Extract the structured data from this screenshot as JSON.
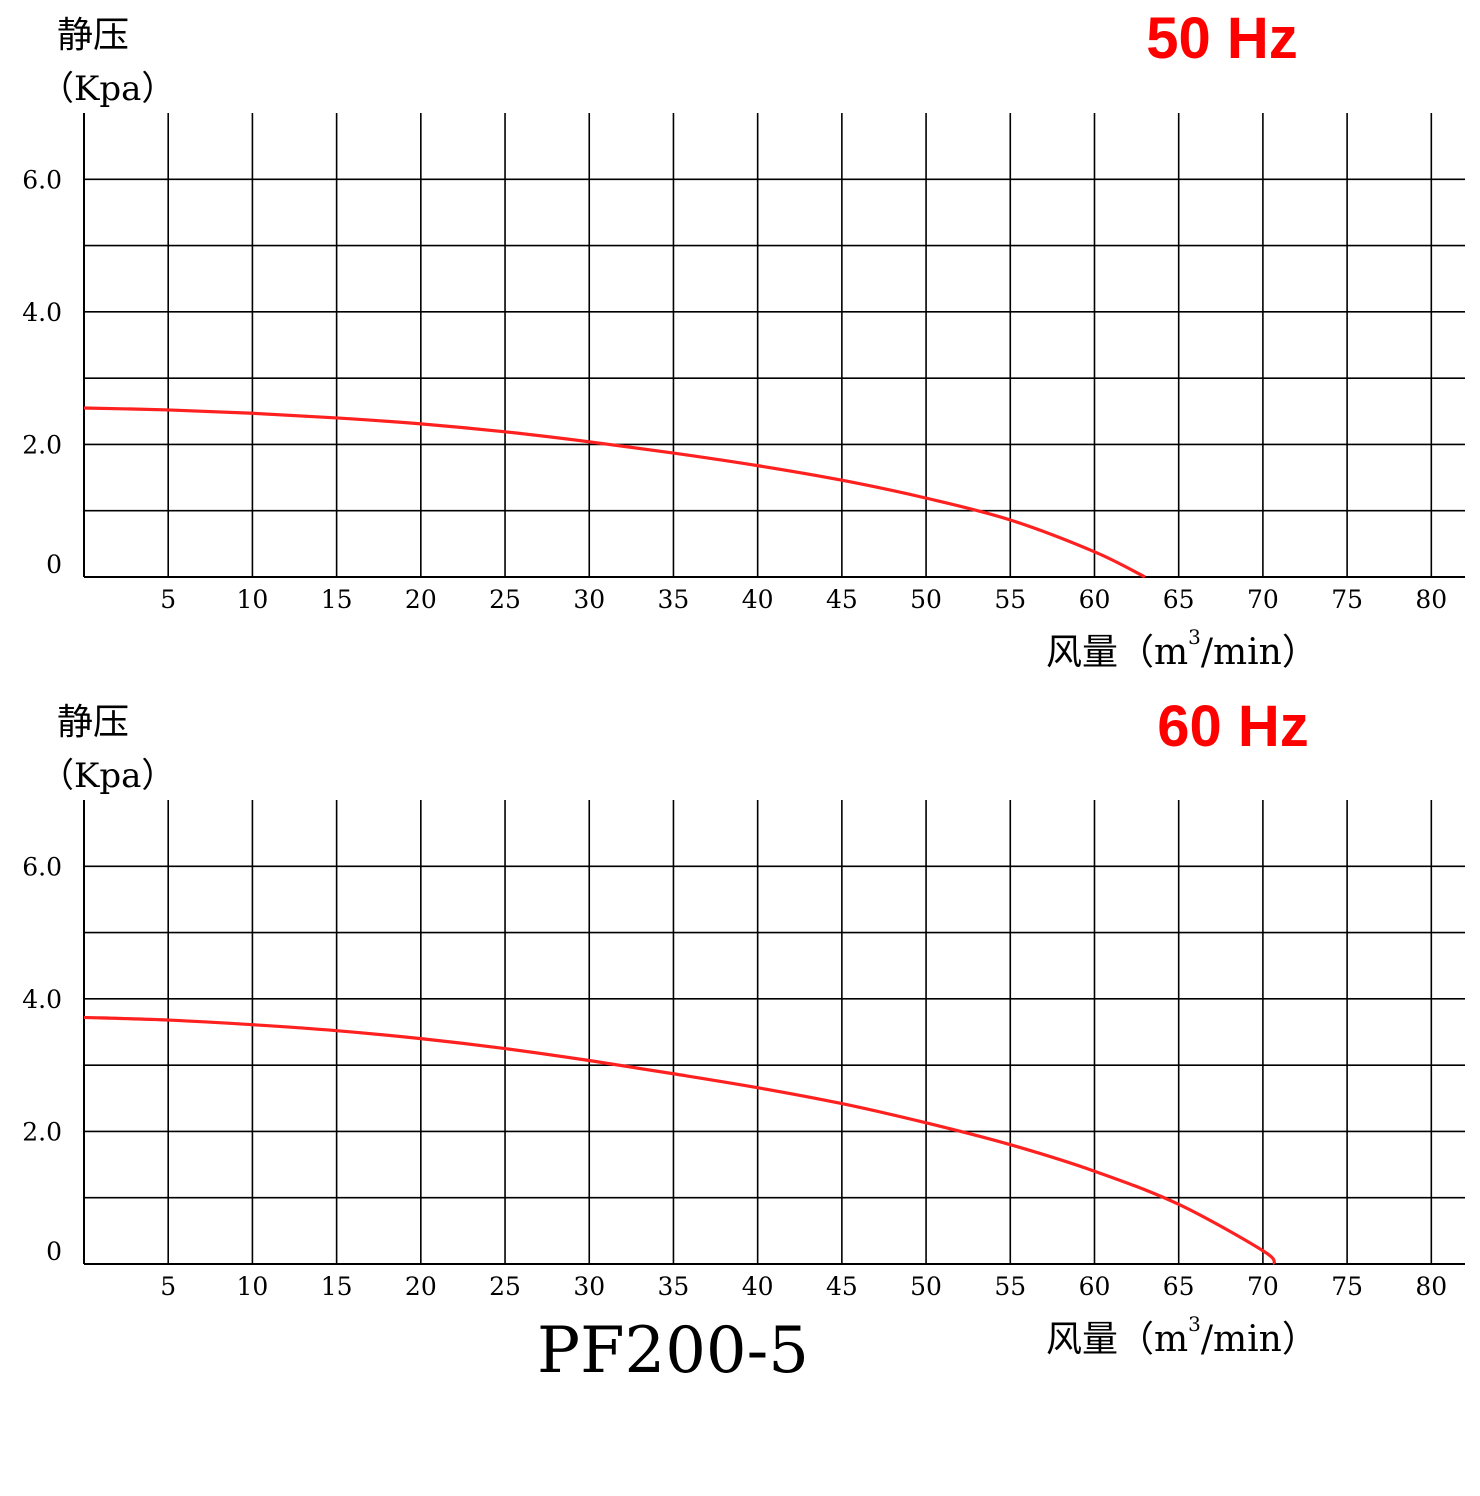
{
  "model": "PF200-5",
  "colors": {
    "curve": "#ff2020",
    "freq_label": "#ff0000",
    "grid": "#000000",
    "text": "#000000"
  },
  "chart_data": [
    {
      "type": "line",
      "title": "50 Hz",
      "ylabel": "静压",
      "yunit": "（Kpa）",
      "xlabel": "风量（m³/min）",
      "xlabel_parts": {
        "prefix": "风量（m",
        "sup": "3",
        "suffix": "/min）"
      },
      "xlim": [
        0,
        82
      ],
      "ylim": [
        0,
        7
      ],
      "x_ticks": [
        "5",
        "10",
        "15",
        "20",
        "25",
        "30",
        "35",
        "40",
        "45",
        "50",
        "55",
        "60",
        "65",
        "70",
        "75",
        "80"
      ],
      "y_ticks": [
        {
          "value": 0,
          "label": "0"
        },
        {
          "value": 2,
          "label": "2.0"
        },
        {
          "value": 4,
          "label": "4.0"
        },
        {
          "value": 6,
          "label": "6.0"
        }
      ],
      "grid": true,
      "series": [
        {
          "x": [
            0,
            5,
            10,
            15,
            20,
            25,
            30,
            35,
            40,
            45,
            50,
            55,
            60,
            63
          ],
          "y": [
            2.55,
            2.52,
            2.47,
            2.4,
            2.31,
            2.19,
            2.04,
            1.87,
            1.68,
            1.46,
            1.19,
            0.86,
            0.38,
            0.0
          ]
        }
      ]
    },
    {
      "type": "line",
      "title": "60 Hz",
      "ylabel": "静压",
      "yunit": "（Kpa）",
      "xlabel": "风量（m³/min）",
      "xlabel_parts": {
        "prefix": "风量（m",
        "sup": "3",
        "suffix": "/min）"
      },
      "xlim": [
        0,
        82
      ],
      "ylim": [
        0,
        7
      ],
      "x_ticks": [
        "5",
        "10",
        "15",
        "20",
        "25",
        "30",
        "35",
        "40",
        "45",
        "50",
        "55",
        "60",
        "65",
        "70",
        "75",
        "80"
      ],
      "y_ticks": [
        {
          "value": 0,
          "label": "0"
        },
        {
          "value": 2,
          "label": "2.0"
        },
        {
          "value": 4,
          "label": "4.0"
        },
        {
          "value": 6,
          "label": "6.0"
        }
      ],
      "grid": true,
      "series": [
        {
          "x": [
            0,
            5,
            10,
            15,
            20,
            25,
            30,
            35,
            40,
            45,
            50,
            55,
            60,
            65,
            70,
            70.7
          ],
          "y": [
            3.72,
            3.68,
            3.61,
            3.52,
            3.4,
            3.25,
            3.07,
            2.87,
            2.66,
            2.42,
            2.13,
            1.8,
            1.4,
            0.9,
            0.2,
            0.0
          ]
        }
      ]
    }
  ]
}
